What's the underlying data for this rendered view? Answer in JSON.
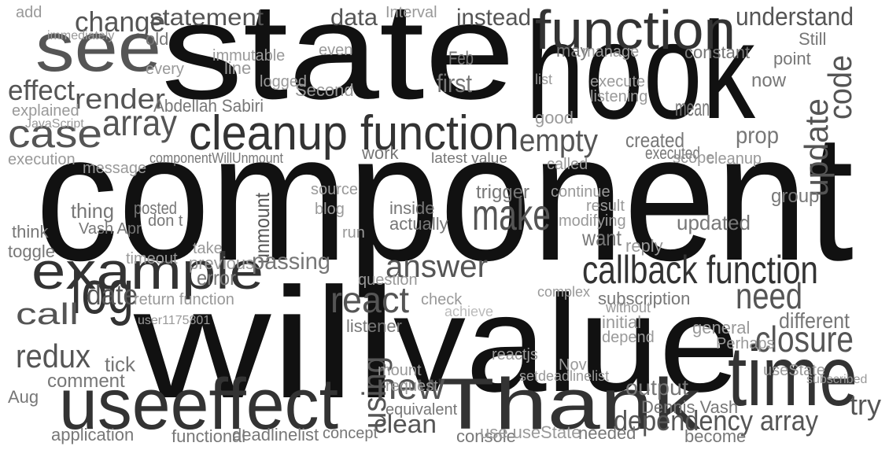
{
  "words": [
    "component",
    "state",
    "hook",
    "will",
    "value",
    "Thank",
    "time",
    "useeffect",
    "function",
    "cleanup function",
    "callback function",
    "example",
    "log",
    "see",
    "array",
    "case",
    "render",
    "effect",
    "change",
    "statement",
    "data",
    "instead",
    "understand",
    "update",
    "code",
    "using",
    "unmount",
    "react",
    "answer",
    "make",
    "empty",
    "closure",
    "need",
    "redux",
    "call",
    "date",
    "new",
    "clean",
    "dependency array",
    "try",
    "output",
    "passing",
    "first",
    "mean",
    "prop",
    "want",
    "thing",
    "error",
    "different",
    "posted",
    "Abdellah Sabiri",
    "componentWillUnmount",
    "latest value",
    "created",
    "executed",
    "Feb",
    "old",
    "Still",
    "point",
    "now",
    "constant",
    "may",
    "tick",
    "comment",
    "Aug",
    "application",
    "functional",
    "deadlinelist",
    "concept",
    "console",
    "use useState",
    "needed",
    "become",
    "Dennis Vash",
    "equivalent",
    "request",
    "listener",
    "question",
    "trigger",
    "inside",
    "actually",
    "run",
    "blog",
    "source",
    "work",
    "subscription",
    "initial",
    "general",
    "updated",
    "group",
    "reply",
    "don t",
    "Vash Apr",
    "toggle",
    "think",
    "timeout",
    "take",
    "previous",
    "return function",
    "user1175801",
    "execution",
    "message",
    "explained",
    "JavaScript",
    "add",
    "immediately",
    "every",
    "line",
    "Second",
    "Interval",
    "immutable",
    "logged",
    "even",
    "good",
    "called",
    "continue",
    "result",
    "modifying",
    "scope",
    "cleanup",
    "check",
    "achieve",
    "complex",
    "without",
    "depend",
    "reactjs",
    "Nov",
    "Perhaps",
    "useState",
    "subscribed",
    "execute",
    "listening",
    "manage",
    "list",
    "setdeadlinelist",
    "mount"
  ]
}
